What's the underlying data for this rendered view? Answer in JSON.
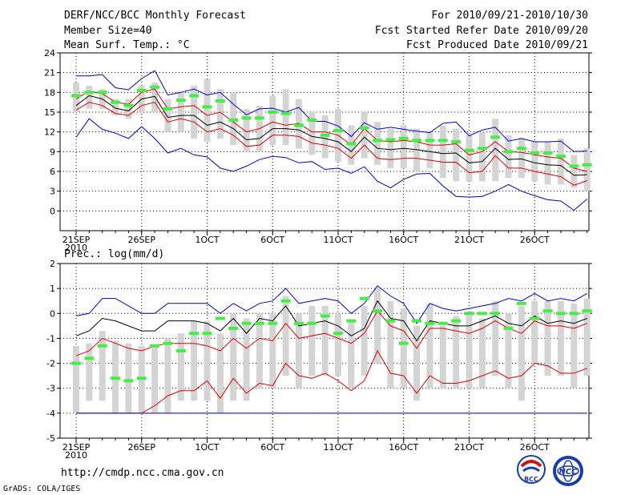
{
  "header": {
    "title": "DERF/NCC/BCC Monthly Forecast",
    "member_size": "Member Size=40",
    "variable": "Mean Surf. Temp.: °C",
    "period": "For 2010/09/21-2010/10/30",
    "started": "Fcst Started Refer Date 2010/09/20",
    "produced": "Fcst Produced Date 2010/09/21"
  },
  "footer": {
    "url": "http://cmdp.ncc.cma.gov.cn",
    "credit": "GrADS: COLA/IGES",
    "logo1_text": "BCC",
    "logo2_text": "NCC"
  },
  "colors": {
    "max_min": "#0000cc",
    "mean": "#000000",
    "spread": "#dd0000",
    "obs": "#44ee44",
    "box": "#d4d4d4"
  },
  "chart_data": [
    {
      "type": "line",
      "title": "Mean Surf. Temp.: °C",
      "ylim": [
        -3,
        24
      ],
      "yticks": [
        0,
        3,
        6,
        9,
        12,
        15,
        18,
        21,
        24
      ],
      "xlabels": [
        {
          "i": 0,
          "l": "21SEP",
          "sub": "2010"
        },
        {
          "i": 5,
          "l": "26SEP"
        },
        {
          "i": 10,
          "l": "1OCT"
        },
        {
          "i": 15,
          "l": "6OCT"
        },
        {
          "i": 20,
          "l": "11OCT"
        },
        {
          "i": 25,
          "l": "16OCT"
        },
        {
          "i": 30,
          "l": "21OCT"
        },
        {
          "i": 35,
          "l": "26OCT"
        }
      ],
      "days": 40,
      "series": [
        {
          "name": "max",
          "color": "#0000cc",
          "values": [
            20.5,
            20.5,
            20.7,
            18.7,
            18.4,
            20.1,
            21.3,
            17.6,
            18.0,
            18.5,
            17.6,
            18.0,
            16.2,
            14.6,
            15.5,
            15.6,
            15.0,
            15.7,
            13.6,
            13.6,
            12.9,
            11.3,
            13.4,
            12.4,
            12.7,
            12.4,
            12.1,
            11.9,
            13.3,
            13.5,
            11.4,
            12.3,
            12.7,
            10.6,
            11.0,
            10.5,
            10.5,
            10.6,
            9.0,
            9.1
          ]
        },
        {
          "name": "upper",
          "color": "#dd0000",
          "values": [
            17.0,
            18.2,
            17.8,
            16.5,
            16.2,
            18.0,
            18.5,
            15.5,
            15.8,
            16.0,
            14.5,
            15.0,
            13.5,
            12.0,
            12.5,
            13.5,
            13.0,
            13.3,
            12.0,
            12.0,
            11.5,
            10.0,
            12.5,
            10.7,
            10.5,
            10.7,
            10.5,
            10.0,
            10.0,
            10.2,
            8.5,
            9.0,
            10.5,
            9.0,
            8.9,
            8.5,
            8.2,
            8.0,
            6.5,
            6.0
          ]
        },
        {
          "name": "mean",
          "color": "#000000",
          "values": [
            16.0,
            17.5,
            17.0,
            15.6,
            15.2,
            17.0,
            17.4,
            14.2,
            14.5,
            14.5,
            13.0,
            13.5,
            12.5,
            10.8,
            11.0,
            12.5,
            12.5,
            12.3,
            11.3,
            11.0,
            10.5,
            9.0,
            11.2,
            9.5,
            9.3,
            9.5,
            9.3,
            9.0,
            8.7,
            8.8,
            7.3,
            7.5,
            9.5,
            7.8,
            7.9,
            7.3,
            7.0,
            6.9,
            5.4,
            5.5
          ]
        },
        {
          "name": "lower",
          "color": "#dd0000",
          "values": [
            15.3,
            16.5,
            16.0,
            14.8,
            14.5,
            16.0,
            16.5,
            13.5,
            14.0,
            13.5,
            12.0,
            12.5,
            11.5,
            9.8,
            10.0,
            11.5,
            11.5,
            11.3,
            10.3,
            10.0,
            9.5,
            8.0,
            10.0,
            8.0,
            7.8,
            8.0,
            8.0,
            7.7,
            7.4,
            7.4,
            5.8,
            6.0,
            8.4,
            6.5,
            6.5,
            6.0,
            5.6,
            5.2,
            3.9,
            4.6
          ]
        },
        {
          "name": "min",
          "color": "#0000cc",
          "values": [
            11.2,
            14.0,
            12.4,
            11.8,
            11.0,
            12.8,
            11.0,
            8.8,
            9.5,
            8.5,
            8.2,
            6.5,
            6.0,
            6.8,
            7.8,
            8.3,
            8.1,
            7.3,
            7.5,
            6.3,
            6.5,
            5.7,
            6.7,
            4.5,
            3.5,
            4.8,
            5.6,
            5.7,
            3.8,
            2.2,
            2.1,
            2.2,
            3.0,
            4.0,
            3.0,
            2.3,
            1.7,
            1.5,
            0.1,
            1.8
          ]
        }
      ],
      "boxes": [
        [
          15.0,
          19.5
        ],
        [
          15.5,
          19.0
        ],
        [
          15.5,
          18.5
        ],
        [
          14.5,
          17.0
        ],
        [
          14.0,
          17.0
        ],
        [
          15.0,
          19.0
        ],
        [
          15.0,
          19.5
        ],
        [
          12.0,
          17.0
        ],
        [
          12.0,
          18.0
        ],
        [
          11.0,
          19.0
        ],
        [
          10.5,
          20.0
        ],
        [
          11.0,
          18.5
        ],
        [
          10.0,
          18.0
        ],
        [
          9.0,
          15.5
        ],
        [
          9.0,
          16.0
        ],
        [
          10.0,
          17.5
        ],
        [
          10.0,
          18.5
        ],
        [
          9.5,
          17.0
        ],
        [
          8.5,
          15.0
        ],
        [
          8.0,
          14.5
        ],
        [
          7.5,
          15.5
        ],
        [
          7.0,
          13.0
        ],
        [
          8.0,
          15.0
        ],
        [
          7.0,
          13.5
        ],
        [
          6.5,
          12.5
        ],
        [
          6.5,
          13.0
        ],
        [
          6.0,
          12.5
        ],
        [
          6.5,
          12.0
        ],
        [
          5.0,
          13.0
        ],
        [
          4.5,
          12.5
        ],
        [
          4.5,
          11.5
        ],
        [
          4.5,
          12.0
        ],
        [
          4.5,
          14.0
        ],
        [
          5.0,
          11.5
        ],
        [
          5.0,
          11.0
        ],
        [
          4.5,
          10.5
        ],
        [
          4.0,
          10.5
        ],
        [
          4.0,
          11.0
        ],
        [
          3.5,
          8.5
        ],
        [
          3.0,
          9.5
        ]
      ],
      "obs": [
        17.5,
        18.0,
        18.0,
        16.5,
        16.0,
        18.3,
        18.8,
        15.5,
        16.8,
        17.5,
        15.8,
        16.7,
        13.8,
        14.1,
        14.1,
        15.0,
        14.8,
        13.0,
        13.8,
        11.5,
        12.2,
        10.2,
        12.6,
        10.7,
        10.8,
        11.0,
        10.7,
        10.7,
        10.7,
        10.5,
        9.2,
        9.5,
        11.2,
        9.0,
        9.5,
        8.8,
        8.8,
        8.3,
        6.8,
        7.0
      ]
    },
    {
      "type": "line",
      "title": "Prec.: log(mm/d)",
      "ylim": [
        -5,
        2
      ],
      "yticks": [
        -5,
        -4,
        -3,
        -2,
        -1,
        0,
        1,
        2
      ],
      "xlabels": [
        {
          "i": 0,
          "l": "21SEP",
          "sub": "2010"
        },
        {
          "i": 5,
          "l": "26SEP"
        },
        {
          "i": 10,
          "l": "1OCT"
        },
        {
          "i": 15,
          "l": "6OCT"
        },
        {
          "i": 20,
          "l": "11OCT"
        },
        {
          "i": 25,
          "l": "16OCT"
        },
        {
          "i": 30,
          "l": "21OCT"
        },
        {
          "i": 35,
          "l": "26OCT"
        }
      ],
      "days": 40,
      "series": [
        {
          "name": "max",
          "color": "#0000cc",
          "values": [
            -0.1,
            0.0,
            0.6,
            0.6,
            0.3,
            0.0,
            0.0,
            0.4,
            0.4,
            0.4,
            0.4,
            0.0,
            0.4,
            0.1,
            0.4,
            0.5,
            1.0,
            0.4,
            0.5,
            0.6,
            0.5,
            0.0,
            0.4,
            1.1,
            0.7,
            0.4,
            -0.4,
            0.4,
            0.2,
            0.1,
            0.2,
            0.3,
            0.4,
            0.6,
            0.5,
            0.8,
            0.5,
            0.6,
            0.5,
            0.8
          ]
        },
        {
          "name": "upper",
          "color": "#000000",
          "values": [
            -0.9,
            -0.7,
            -0.2,
            -0.3,
            -0.5,
            -0.7,
            -0.7,
            -0.3,
            -0.3,
            -0.3,
            -0.4,
            -0.7,
            -0.2,
            -0.8,
            -0.2,
            -0.3,
            0.3,
            -0.5,
            -0.4,
            -0.3,
            -0.5,
            -0.9,
            -0.6,
            0.5,
            -0.2,
            -0.3,
            -1.1,
            -0.3,
            -0.4,
            -0.5,
            -0.5,
            -0.3,
            -0.1,
            -0.4,
            -0.5,
            -0.1,
            -0.4,
            -0.3,
            -0.4,
            -0.2
          ]
        },
        {
          "name": "mean",
          "color": "#dd0000",
          "values": [
            -1.7,
            -1.5,
            -1.0,
            -1.2,
            -1.4,
            -1.5,
            -1.3,
            -1.2,
            -1.2,
            -1.2,
            -1.3,
            -1.5,
            -1.0,
            -1.4,
            -1.0,
            -1.1,
            -0.4,
            -1.0,
            -0.9,
            -0.8,
            -1.0,
            -1.2,
            -0.8,
            0.1,
            -0.5,
            -0.7,
            -1.4,
            -0.6,
            -0.6,
            -0.7,
            -0.8,
            -0.6,
            -0.3,
            -0.6,
            -0.8,
            -0.3,
            -0.5,
            -0.5,
            -0.6,
            -0.4
          ]
        },
        {
          "name": "lower",
          "color": "#dd0000",
          "values": [
            -4,
            -4,
            -4,
            -4,
            -4,
            -4,
            -3.7,
            -3.3,
            -3.1,
            -3.1,
            -2.7,
            -3.4,
            -2.6,
            -3.2,
            -2.8,
            -2.9,
            -2.0,
            -2.5,
            -2.6,
            -2.4,
            -2.7,
            -3.1,
            -2.7,
            -1.5,
            -2.4,
            -2.5,
            -3.2,
            -2.5,
            -2.8,
            -2.8,
            -2.7,
            -2.5,
            -2.3,
            -2.6,
            -2.5,
            -2.0,
            -2.1,
            -2.4,
            -2.4,
            -2.2
          ]
        },
        {
          "name": "min",
          "color": "#0000cc",
          "values": [
            -4,
            -4,
            -4,
            -4,
            -4,
            -4,
            -4,
            -4,
            -4,
            -4,
            -4,
            -4,
            -4,
            -4,
            -4,
            -4,
            -4,
            -4,
            -4,
            -4,
            -4,
            -4,
            -4,
            -4,
            -4,
            -4,
            -4,
            -4,
            -4,
            -4,
            -4,
            -4,
            -4,
            -4,
            -4,
            -4,
            -4,
            -4,
            -4,
            -4
          ]
        }
      ],
      "boxes": [
        [
          -4.0,
          -1.3
        ],
        [
          -3.5,
          -1.2
        ],
        [
          -3.5,
          -0.7
        ],
        [
          -4.0,
          -1.1
        ],
        [
          -4.0,
          -1.2
        ],
        [
          -4.0,
          -1.3
        ],
        [
          -4.0,
          -1.3
        ],
        [
          -4.0,
          -1.0
        ],
        [
          -3.5,
          -0.8
        ],
        [
          -3.5,
          -0.3
        ],
        [
          -3.5,
          -0.3
        ],
        [
          -4.0,
          -0.8
        ],
        [
          -3.5,
          0.0
        ],
        [
          -3.5,
          -0.2
        ],
        [
          -3.0,
          0.0
        ],
        [
          -3.0,
          0.0
        ],
        [
          -2.5,
          0.7
        ],
        [
          -3.0,
          0.0
        ],
        [
          -2.5,
          0.3
        ],
        [
          -2.5,
          0.3
        ],
        [
          -2.5,
          0.0
        ],
        [
          -3.0,
          -0.3
        ],
        [
          -2.5,
          0.3
        ],
        [
          -2.0,
          1.0
        ],
        [
          -3.0,
          0.5
        ],
        [
          -3.0,
          0.2
        ],
        [
          -3.5,
          -0.5
        ],
        [
          -3.0,
          0.4
        ],
        [
          -3.0,
          -0.5
        ],
        [
          -3.0,
          -0.1
        ],
        [
          -3.0,
          0.0
        ],
        [
          -3.0,
          -0.2
        ],
        [
          -2.5,
          0.5
        ],
        [
          -3.0,
          0.0
        ],
        [
          -3.5,
          0.3
        ],
        [
          -2.0,
          0.5
        ],
        [
          -2.5,
          0.5
        ],
        [
          -2.5,
          0.5
        ],
        [
          -3.0,
          0.4
        ],
        [
          -2.5,
          0.6
        ]
      ],
      "obs": [
        -2.0,
        -1.8,
        -1.3,
        -2.6,
        -2.7,
        -2.6,
        -1.3,
        -1.2,
        -1.5,
        -0.8,
        -0.8,
        -0.2,
        -0.6,
        -0.4,
        -0.4,
        -0.4,
        0.5,
        -0.4,
        -0.4,
        -0.1,
        -0.8,
        -0.3,
        0.6,
        0.1,
        -0.3,
        -1.2,
        -0.3,
        -0.4,
        -0.4,
        -0.3,
        0.0,
        0.0,
        0.0,
        -0.6,
        0.4,
        -0.2,
        0.1,
        0.0,
        0.0,
        0.1
      ]
    }
  ]
}
